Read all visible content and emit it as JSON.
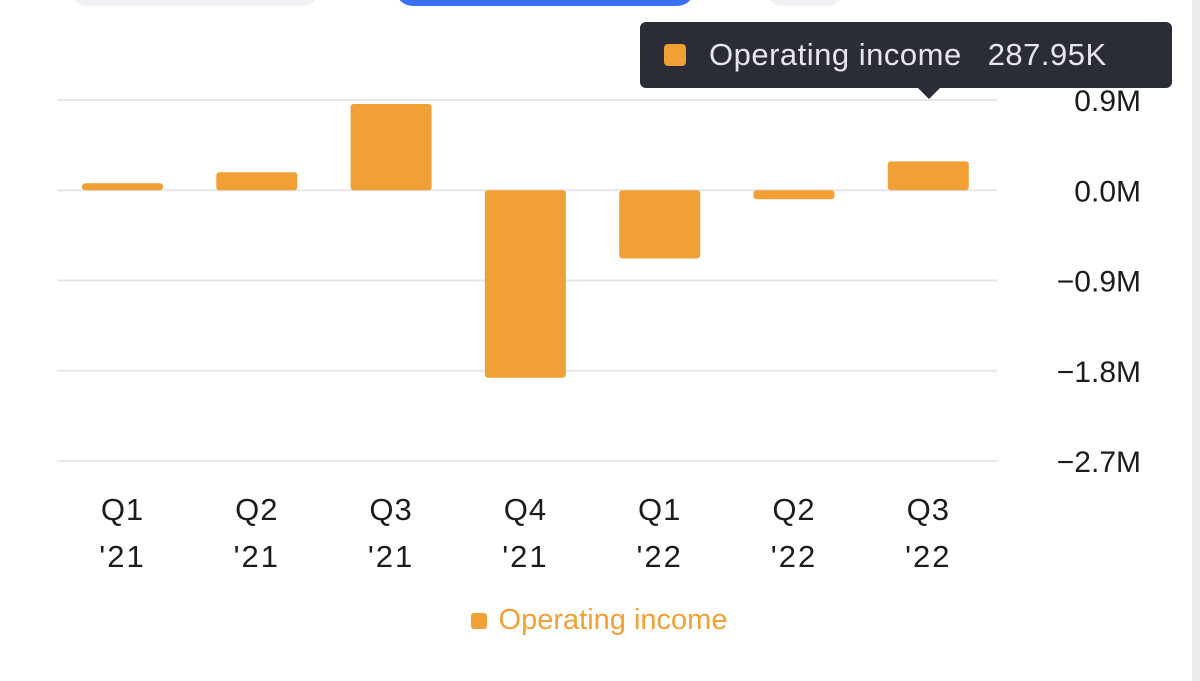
{
  "colors": {
    "bar": "#f0a035",
    "grid": "#e6e6ea",
    "axis_text": "#1c1c1e",
    "tooltip_bg": "#2b2d36",
    "tooltip_text": "#e6e7ee",
    "accent_tab": "#3a6ff7"
  },
  "tooltip": {
    "label": "Operating income",
    "value": "287.95K",
    "icon": "square-swatch-icon"
  },
  "legend": {
    "label": "Operating income",
    "icon": "square-swatch-icon"
  },
  "chart_data": {
    "type": "bar",
    "title": "",
    "xlabel": "",
    "ylabel": "",
    "categories": [
      {
        "line1": "Q1",
        "line2": "'21"
      },
      {
        "line1": "Q2",
        "line2": "'21"
      },
      {
        "line1": "Q3",
        "line2": "'21"
      },
      {
        "line1": "Q4",
        "line2": "'21"
      },
      {
        "line1": "Q1",
        "line2": "'22"
      },
      {
        "line1": "Q2",
        "line2": "'22"
      },
      {
        "line1": "Q3",
        "line2": "'22"
      }
    ],
    "series": [
      {
        "name": "Operating income",
        "values": [
          70000,
          180000,
          860000,
          -1870000,
          -680000,
          -90000,
          287950
        ]
      }
    ],
    "ylim": [
      -2700000,
      900000
    ],
    "yticks": [
      {
        "value": 900000,
        "label": "0.9M"
      },
      {
        "value": 0,
        "label": "0.0M"
      },
      {
        "value": -900000,
        "label": "−0.9M"
      },
      {
        "value": -1800000,
        "label": "−1.8M"
      },
      {
        "value": -2700000,
        "label": "−2.7M"
      }
    ],
    "grid": true,
    "y_axis_position": "right",
    "legend_position": "bottom-center",
    "highlighted_category_index": 6
  }
}
